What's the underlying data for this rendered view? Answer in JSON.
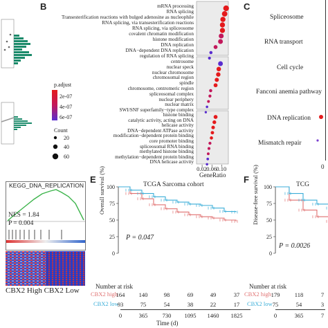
{
  "panels": {
    "b": {
      "letter": "B",
      "group1_terms": [
        "mRNA processing",
        "RNA splicing",
        "Transesterification reactions with bulged adenosine as nucleophile",
        "RNA splicing, via transesterification reactions",
        "RNA splicing, via spliceosome",
        "covalent chromatin modification",
        "histone modification",
        "DNA replication",
        "DNA−dependent DNA replication",
        "regulation of RNA splicing"
      ],
      "group1_ratio": [
        0.118,
        0.112,
        0.105,
        0.103,
        0.103,
        0.098,
        0.095,
        0.075,
        0.056,
        0.05
      ],
      "group2_terms": [
        "centrosome",
        "nuclear speck",
        "nuclear chromosome",
        "chromosomal region",
        "spindle",
        "chromosome, centromeric region",
        "spliceosomal complex",
        "nuclear periphery",
        "nuclear matrix",
        "SWI/SNF superfamily−type complex"
      ],
      "group2_ratio": [
        0.095,
        0.088,
        0.086,
        0.08,
        0.075,
        0.055,
        0.052,
        0.046,
        0.04,
        0.035
      ],
      "group3_terms": [
        "histone binding",
        "catalytic activity, acting on DNA",
        "helicase activity",
        "DNA−dependent ATPase activity",
        "modification−dependent protein binding",
        "core promoter binding",
        "spliceosomal RNA binding",
        "methylated histone binding",
        "methylation−dependent protein binding",
        "DNA helicase activity"
      ],
      "group3_ratio": [
        0.075,
        0.07,
        0.065,
        0.062,
        0.058,
        0.052,
        0.048,
        0.045,
        0.043,
        0.04
      ],
      "x_ticks": [
        "0.02",
        "0.06",
        "0.10"
      ],
      "xlabel": "GeneRatio",
      "legend_padjust_title": "p.adjust",
      "legend_padjust_ticks": [
        "2e-07",
        "4e-07",
        "6e-07"
      ],
      "legend_count_title": "Count",
      "legend_count_values": [
        "20",
        "40",
        "60"
      ],
      "colors": {
        "low": "#e41a1c",
        "mid": "#c2185b",
        "high": "#5a2dcf"
      }
    },
    "c": {
      "letter": "C",
      "terms": [
        "Spliceosome",
        "RNA transport",
        "Cell cycle",
        "Fanconi anemia pathway",
        "DNA replication",
        "Mismatch repair"
      ],
      "x_tick": "0"
    },
    "d": {
      "gsea_title": "KEGG_DNA_REPLICATION",
      "nes": "NES = 1.84",
      "p": "P = 0.004",
      "footer": "CBX2 High CBX2 Low"
    },
    "e": {
      "letter": "E",
      "title": "TCGA Sarcoma cohort",
      "ylabel": "Overall survival (%)",
      "p_value": "P = 0.047",
      "y_ticks": [
        "0",
        "25",
        "50",
        "75",
        "100"
      ],
      "risk_title": "Number at risk",
      "high_label": "CBX2 high",
      "low_label": "CBX2 low",
      "high_counts": [
        "164",
        "140",
        "98",
        "69",
        "49",
        "37"
      ],
      "low_counts": [
        "93",
        "75",
        "54",
        "38",
        "22",
        "17"
      ],
      "x_ticks": [
        "0",
        "365",
        "730",
        "1095",
        "1460",
        "1825"
      ],
      "xlabel": "Time (d)",
      "high_color": "#e07070",
      "low_color": "#3aaed8"
    },
    "f": {
      "letter": "F",
      "title": "TCG",
      "ylabel": "Disease-free survival (%)",
      "p_value": "P = 0.0026",
      "y_ticks": [
        "0",
        "25",
        "50",
        "75",
        "100"
      ],
      "risk_title": "Number at risk",
      "high_label": "CBX2 high",
      "low_label": "CBX2 low",
      "high_counts": [
        "179",
        "118",
        "7"
      ],
      "low_counts": [
        "75",
        "54",
        "3"
      ],
      "x_ticks": [
        "0",
        "365",
        "7"
      ]
    }
  },
  "chart_data": [
    {
      "type": "line",
      "title": "TCGA Sarcoma cohort",
      "ylabel": "Overall survival (%)",
      "xlabel": "Time (d)",
      "ylim": [
        0,
        100
      ],
      "x": [
        0,
        182,
        365,
        547,
        730,
        912,
        1095,
        1277,
        1460,
        1642,
        1825
      ],
      "series": [
        {
          "name": "CBX2 high",
          "values": [
            100,
            90,
            82,
            73,
            67,
            62,
            58,
            55,
            53,
            50,
            48
          ]
        },
        {
          "name": "CBX2 low",
          "values": [
            100,
            95,
            90,
            85,
            80,
            77,
            74,
            72,
            68,
            63,
            62
          ]
        }
      ]
    },
    {
      "type": "line",
      "ylabel": "Disease-free survival (%)",
      "ylim": [
        0,
        100
      ],
      "x": [
        0,
        182,
        365,
        547,
        730
      ],
      "series": [
        {
          "name": "CBX2 high",
          "values": [
            100,
            80,
            65,
            55,
            48
          ]
        },
        {
          "name": "CBX2 low",
          "values": [
            100,
            90,
            80,
            74,
            68
          ]
        }
      ]
    }
  ]
}
